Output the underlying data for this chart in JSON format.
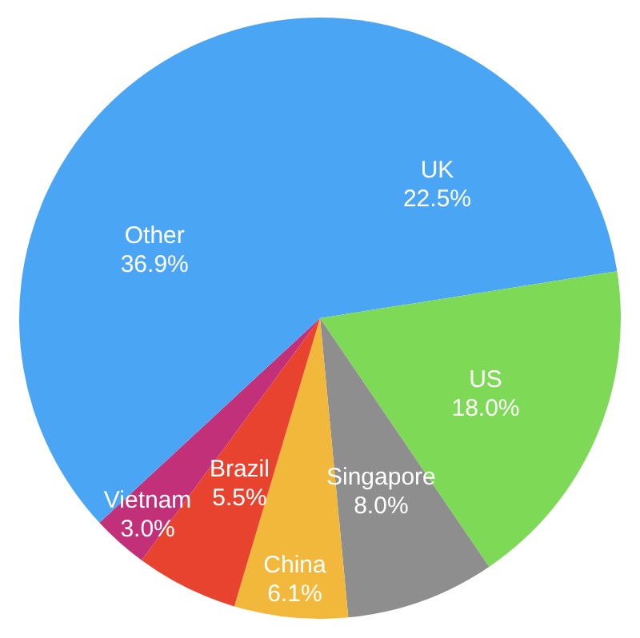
{
  "chart_data": {
    "type": "pie",
    "categories": [
      "UK",
      "US",
      "Singapore",
      "China",
      "Brazil",
      "Vietnam",
      "Other"
    ],
    "values": [
      22.5,
      18.0,
      8.0,
      6.1,
      5.5,
      3.0,
      36.9
    ],
    "value_labels": [
      "22.5%",
      "18.0%",
      "8.0%",
      "6.1%",
      "5.5%",
      "3.0%",
      "36.9%"
    ],
    "colors": [
      "#4ba5f5",
      "#7ed957",
      "#8e8e8e",
      "#f2b83c",
      "#e8432e",
      "#c2307a",
      "#4ba5f5"
    ],
    "legend": false
  }
}
